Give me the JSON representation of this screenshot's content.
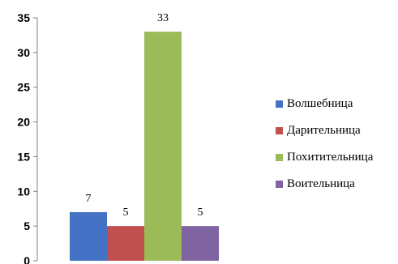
{
  "chart_data": {
    "type": "bar",
    "ylim": [
      0,
      35
    ],
    "yticks": [
      0,
      5,
      10,
      15,
      20,
      25,
      30,
      35
    ],
    "grid": false,
    "legend_position": "right",
    "series": [
      {
        "name": "Волшебница",
        "value": 7,
        "color": "#4472C4"
      },
      {
        "name": "Дарительница",
        "value": 5,
        "color": "#C0504D"
      },
      {
        "name": "Похитительница",
        "value": 33,
        "color": "#9BBB59"
      },
      {
        "name": "Воительница",
        "value": 5,
        "color": "#8064A2"
      }
    ]
  }
}
